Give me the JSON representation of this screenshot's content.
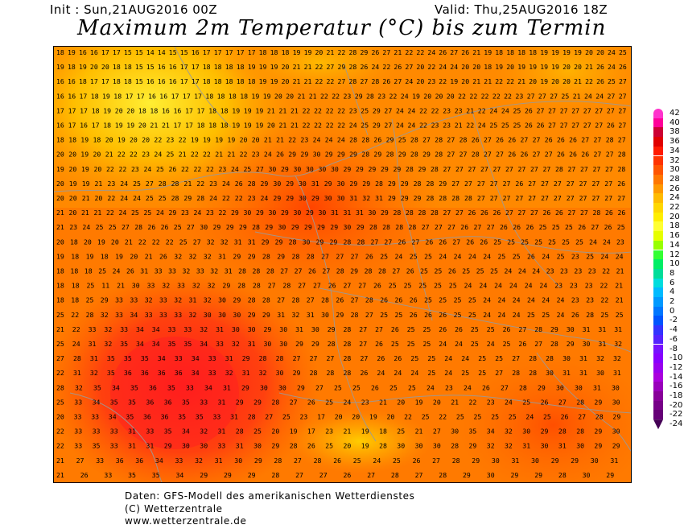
{
  "header": {
    "init": "Init : Sun,21AUG2016 00Z",
    "valid": "Valid: Thu,25AUG2016 18Z",
    "title": "Maximum 2m Temperatur (°C) bis zum Termin"
  },
  "legend": {
    "labels": [
      "42",
      "40",
      "38",
      "36",
      "34",
      "32",
      "30",
      "28",
      "26",
      "24",
      "22",
      "20",
      "18",
      "16",
      "14",
      "12",
      "10",
      "8",
      "6",
      "4",
      "2",
      "0",
      "-2",
      "-4",
      "-6",
      "-8",
      "-10",
      "-12",
      "-14",
      "-16",
      "-18",
      "-20",
      "-22",
      "-24"
    ],
    "colors": [
      "#ff33cc",
      "#ff0099",
      "#cc0033",
      "#e00000",
      "#ff1a00",
      "#ff3300",
      "#ff5500",
      "#ff7700",
      "#ff9900",
      "#ffbb00",
      "#ffd700",
      "#ffee00",
      "#ffff33",
      "#e6ff00",
      "#99ff00",
      "#33ff33",
      "#00ee66",
      "#00dd99",
      "#00dddd",
      "#00bbff",
      "#0099ff",
      "#0077ff",
      "#0055ff",
      "#3333ff",
      "#5522ff",
      "#7711ff",
      "#8800ff",
      "#9900ee",
      "#aa00dd",
      "#9900bb",
      "#880099",
      "#770088",
      "#660077",
      "#440055"
    ]
  },
  "map": {
    "gridlines": [
      "18 19 16 16 17 17 15 15 14 14 15 15 16 17 17 17 17 17 18 18 18 19 19 20 21 22 28 29 26 27 21 22 22 24 26 27 26 21 19 18 18 18 18 19 19 19 19 20 20 24 25",
      "19 18 19 20 20 18 18 15 15 16 16 17 17 18 18 18 18 19 19 19 20 21 21 22 27 29 28 26 24 22 26 27 20 22 24 24 20 20 18 19 20 19 19 19 19 20 20 21 26 24 26",
      "16 16 18 17 17 18 18 15 16 16 16 17 17 18 18 18 18 18 19 19 20 21 21 22 22 27 28 27 28 26 27 24 20 23 22 19 20 21 21 22 22 21 20 19 20 20 21 22 26 25 27",
      "16 16 17 18 19 18 17 17 16 16 17 17 17 18 18 18 18 19 19 20 20 21 21 22 22 23 29 28 23 22 24 19 20 20 20 22 22 22 22 22 23 27 27 27 25 21 24 24 27 27",
      "17 17 17 18 19 20 20 18 18 16 16 17 17 18 18 19 19 19 21 21 21 22 22 22 22 23 25 29 27 24 24 22 22 23 23 21 22 24 24 25 26 27 27 27 27 27 27 27 27",
      "16 17 16 17 18 19 19 20 21 21 17 17 18 18 18 19 19 19 20 21 21 22 22 22 22 24 25 29 27 24 24 22 23 23 21 22 24 25 25 25 26 26 27 27 27 27 27 26 27",
      "18 18 19 18 20 19 20 20 22 23 22 19 19 19 19 20 20 21 21 22 23 24 24 24 28 28 26 29 25 28 27 28 27 28 26 27 26 26 27 27 26 26 26 27 27 28 27",
      "20 20 19 20 21 22 22 23 24 25 21 22 22 21 21 22 23 24 26 29 29 30 29 29 29 28 29 28 29 28 29 28 27 27 28 27 27 26 26 27 27 26 26 26 27 27 28",
      "19 20 19 20 22 22 23 24 25 26 22 22 22 23 24 25 27 30 29 30 30 30 30 29 29 29 29 29 28 29 28 27 27 27 27 27 27 27 27 27 28 27 27 27 27 28",
      "20 19 19 21 23 24 25 27 28 28 21 22 23 24 26 28 29 30 29 30 31 29 30 29 29 28 29 29 28 28 29 27 27 27 27 27 26 27 27 27 27 27 27 27 26",
      "20 20 21 20 22 24 24 25 25 28 29 28 24 22 22 23 24 29 29 30 29 30 30 31 32 31 29 29 29 28 28 28 28 27 27 27 27 27 27 27 27 27 27 27 27",
      "21 20 21 21 22 24 25 25 24 29 23 24 23 22 29 30 29 30 29 30 29 30 31 31 31 30 29 28 28 28 28 27 27 26 26 26 27 27 27 26 26 27 27 28 26 26",
      "21 23 24 25 25 27 28 26 26 25 27 30 29 29 29 28 29 30 29 29 29 29 30 29 28 28 28 28 27 27 27 26 27 27 26 26 26 25 25 25 26 27 26 25",
      "20 18 20 19 20 21 22 22 22 25 27 32 32 31 31 29 29 28 30 29 29 28 28 27 27 26 27 26 26 27 26 26 25 25 25 25 25 25 25 24 24 23",
      "19 18 19 18 19 20 21 26 32 32 32 31 29 29 28 29 28 28 27 27 27 26 25 24 25 25 24 24 24 24 25 25 26 24 25 23 25 24 24",
      "18 18 18 25 24 26 31 33 33 32 33 32 31 28 28 28 27 27 26 27 28 29 28 28 27 26 25 25 26 25 25 25 24 24 24 23 23 23 23 22 21",
      "18 18 25 11 21 30 33 32 33 32 32 29 28 28 27 28 27 27 26 27 27 26 25 25 25 25 25 24 24 24 24 24 24 23 23 23 22 21",
      "18 18 25 29 33 33 32 33 32 31 32 30 29 28 28 27 28 27 28 26 27 28 26 26 26 25 25 25 25 24 24 24 24 24 24 23 23 22 21",
      "25 22 28 32 33 34 33 33 33 32 30 30 30 29 29 31 32 31 30 29 28 27 25 25 26 26 26 25 25 24 24 24 25 25 24 26 28 25 25",
      "21 22 33 32 33 34 34 33 33 32 31 30 30 29 30 31 30 29 28 27 27 26 25 25 26 26 25 25 26 27 28 29 30 31 31 31",
      "25 24 31 32 35 34 34 35 35 34 33 32 31 30 30 29 29 28 28 27 26 25 25 25 24 24 25 24 25 26 27 28 29 30 31 32",
      "27 28 31 35 35 35 34 33 34 33 31 29 28 28 27 27 27 28 27 26 26 25 25 24 24 25 25 27 28 28 30 31 32 32",
      "22 31 32 35 36 36 36 36 34 33 32 31 32 30 29 28 28 28 26 24 24 24 25 24 25 25 27 28 28 30 31 31 30 31",
      "28 32 35 34 35 36 35 33 34 31 29 30 30 29 27 25 25 26 25 25 24 23 24 26 27 28 29 30 30 31 30",
      "25 33 34 35 35 36 36 35 33 31 29 29 28 27 26 25 24 23 21 20 19 20 21 22 23 24 25 26 27 28 29 30",
      "20 33 33 34 35 36 36 35 35 33 31 28 27 25 23 17 20 20 19 20 22 25 22 25 25 25 25 24 25 26 27 28 29",
      "22 33 33 33 31 33 35 34 32 31 28 25 20 19 17 23 21 19 18 25 21 27 30 35 34 32 30 29 28 28 29 30",
      "22 33 35 33 31 31 29 30 30 33 31 30 29 28 26 25 20 19 28 30 30 30 28 29 32 32 31 30 31 30 29 29",
      "21 27 33 36 36 34 33 32 31 30 29 28 27 28 26 25 24 25 26 27 28 29 30 31 30 29 29 30 31",
      "21 26 33 35 35 34 29 29 29 28 27 27 26 27 28 27 28 29 30 29 29 28 30 29"
    ]
  }
}
